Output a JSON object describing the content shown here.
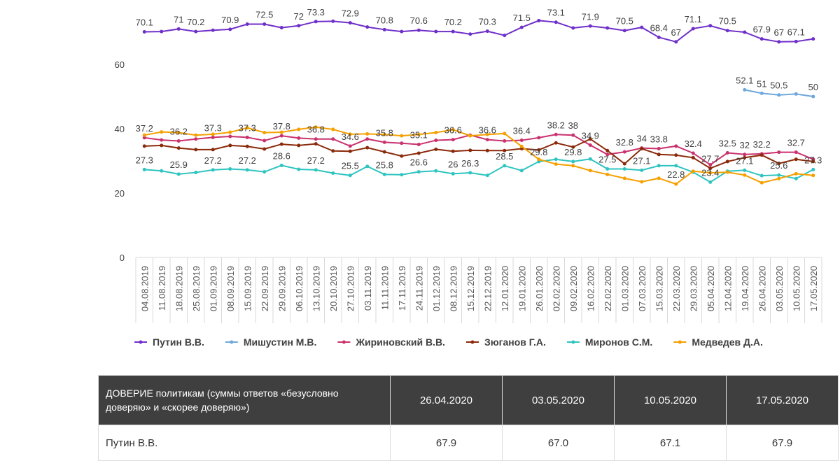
{
  "chart_data": {
    "type": "line",
    "categories": [
      "04.08.2019",
      "11.08.2019",
      "18.08.2019",
      "25.08.2019",
      "01.09.2019",
      "08.09.2019",
      "15.09.2019",
      "22.09.2019",
      "29.09.2019",
      "06.10.2019",
      "13.10.2019",
      "20.10.2019",
      "27.10.2019",
      "03.11.2019",
      "11.11.2019",
      "17.11.2019",
      "24.11.2019",
      "01.12.2019",
      "08.12.2019",
      "15.12.2019",
      "22.12.2019",
      "12.01.2020",
      "19.01.2020",
      "26.01.2020",
      "02.02.2020",
      "09.02.2020",
      "16.02.2020",
      "22.02.2020",
      "01.03.2020",
      "07.03.2020",
      "15.03.2020",
      "22.03.2020",
      "29.03.2020",
      "05.04.2020",
      "12.04.2020",
      "19.04.2020",
      "26.04.2020",
      "03.05.2020",
      "10.05.2020",
      "17.05.2020"
    ],
    "ylim": [
      0,
      80
    ],
    "yticks": [
      0,
      20,
      40,
      60
    ],
    "grid": false,
    "legend": "bottom",
    "series": [
      {
        "name": "Путин В.В.",
        "color": "#6f2fc9",
        "values": [
          70.1,
          70.2,
          71,
          70.2,
          70.6,
          70.9,
          72.5,
          72.5,
          71.4,
          72,
          73.3,
          73.4,
          72.9,
          71.6,
          70.8,
          70.2,
          70.6,
          70.2,
          70.2,
          69.4,
          70.3,
          69,
          71.5,
          73.6,
          73.1,
          71.3,
          71.9,
          71.3,
          70.5,
          71.5,
          68.4,
          67,
          71.1,
          72,
          70.5,
          70,
          67.9,
          67,
          67.1,
          67.9
        ],
        "value_labels": [
          "70.1",
          null,
          "71",
          "70.2",
          null,
          "70.9",
          null,
          "72.5",
          null,
          "72",
          "73.3",
          null,
          "72.9",
          null,
          "70.8",
          null,
          "70.6",
          null,
          "70.2",
          null,
          "70.3",
          null,
          "71.5",
          null,
          "73.1",
          null,
          "71.9",
          null,
          "70.5",
          null,
          "68.4",
          "67",
          "71.1",
          null,
          "70.5",
          null,
          "67.9",
          "67",
          "67.1",
          null
        ]
      },
      {
        "name": "Мишустин М.В.",
        "color": "#6fa8dc",
        "values": [
          null,
          null,
          null,
          null,
          null,
          null,
          null,
          null,
          null,
          null,
          null,
          null,
          null,
          null,
          null,
          null,
          null,
          null,
          null,
          null,
          null,
          null,
          null,
          null,
          null,
          null,
          null,
          null,
          null,
          null,
          null,
          null,
          null,
          null,
          null,
          52.1,
          51,
          50.5,
          50.8,
          50
        ],
        "value_labels": [
          null,
          null,
          null,
          null,
          null,
          null,
          null,
          null,
          null,
          null,
          null,
          null,
          null,
          null,
          null,
          null,
          null,
          null,
          null,
          null,
          null,
          null,
          null,
          null,
          null,
          null,
          null,
          null,
          null,
          null,
          null,
          null,
          null,
          null,
          null,
          "52.1",
          "51",
          "50.5",
          null,
          "50"
        ]
      },
      {
        "name": "Жириновский В.В.",
        "color": "#c9326e",
        "values": [
          37.2,
          36.5,
          36.2,
          36.8,
          37.3,
          37.6,
          37.3,
          36.3,
          37.8,
          37.1,
          36.8,
          36.8,
          34.6,
          36.8,
          35.8,
          35.5,
          35.1,
          36.4,
          36.6,
          38,
          36.6,
          36.2,
          36.4,
          37.2,
          38.2,
          38,
          34.9,
          32,
          32.8,
          34,
          33.8,
          34.6,
          32.4,
          28.8,
          32.5,
          32,
          32.2,
          32.7,
          32.7,
          30.5
        ],
        "value_labels": [
          "37.2",
          null,
          "36.2",
          null,
          "37.3",
          null,
          "37.3",
          null,
          "37.8",
          null,
          "36.8",
          null,
          "34.6",
          null,
          "35.8",
          null,
          "35.1",
          null,
          "36.6",
          null,
          "36.6",
          null,
          "36.4",
          null,
          "38.2",
          "38",
          "34.9",
          null,
          "32.8",
          "34",
          "33.8",
          null,
          "32.4",
          null,
          "32.5",
          "32",
          "32.2",
          null,
          "32.7",
          null
        ]
      },
      {
        "name": "Зюганов Г.А.",
        "color": "#8b2a0a",
        "values": [
          34.6,
          34.8,
          34,
          33.5,
          33.5,
          34.8,
          34.5,
          33.7,
          35.2,
          34.8,
          35.3,
          33.1,
          33,
          34.1,
          32.8,
          31.5,
          32.4,
          33.6,
          33,
          33.3,
          33.2,
          33.2,
          33.8,
          33.4,
          35.6,
          34.3,
          36.8,
          33.2,
          29.1,
          33.8,
          32,
          31.8,
          31,
          27.7,
          29.8,
          31,
          31.8,
          29.2,
          30.5,
          29.8
        ],
        "value_labels": [
          null,
          null,
          null,
          null,
          null,
          null,
          null,
          null,
          null,
          null,
          null,
          null,
          null,
          null,
          null,
          null,
          null,
          null,
          null,
          null,
          null,
          null,
          null,
          null,
          null,
          null,
          null,
          null,
          null,
          null,
          null,
          null,
          null,
          "27.7",
          null,
          null,
          null,
          null,
          null,
          null
        ]
      },
      {
        "name": "Миронов С.М.",
        "color": "#2ec4c0",
        "values": [
          27.3,
          26.9,
          25.9,
          26.4,
          27.2,
          27.5,
          27.2,
          26.6,
          28.6,
          27.4,
          27.2,
          26.2,
          25.5,
          28.3,
          25.8,
          25.7,
          26.6,
          26.9,
          26,
          26.3,
          25.5,
          28.5,
          27,
          29.8,
          30.5,
          29.8,
          30.6,
          27.5,
          27.5,
          27.1,
          28.5,
          28.5,
          26.5,
          23.4,
          26.8,
          27.1,
          25.4,
          25.6,
          24.5,
          27.3
        ],
        "value_labels": [
          "27.3",
          null,
          "25.9",
          null,
          "27.2",
          null,
          "27.2",
          null,
          "28.6",
          null,
          "27.2",
          null,
          "25.5",
          null,
          "25.8",
          null,
          "26.6",
          null,
          "26",
          "26.3",
          null,
          "28.5",
          null,
          "29.8",
          null,
          "29.8",
          null,
          "27.5",
          null,
          "27.1",
          null,
          null,
          null,
          "23.4",
          null,
          "27.1",
          null,
          "25.6",
          null,
          "27.3"
        ]
      },
      {
        "name": "Медведев Д.А.",
        "color": "#f5a000",
        "values": [
          38,
          39,
          38.8,
          38,
          38.3,
          38.9,
          40.3,
          38.8,
          38.9,
          39.8,
          40.5,
          39.8,
          38.3,
          38.4,
          38.2,
          37.8,
          38.2,
          38.8,
          39.7,
          37.8,
          38.2,
          38.5,
          34.5,
          30.5,
          29,
          28.5,
          27,
          25.8,
          24.6,
          23.5,
          24.6,
          22.8,
          26.8,
          26.3,
          26.5,
          25.6,
          23.2,
          24.5,
          26,
          25.5
        ],
        "value_labels": [
          null,
          null,
          null,
          null,
          null,
          null,
          null,
          null,
          null,
          null,
          null,
          null,
          null,
          null,
          null,
          null,
          null,
          null,
          null,
          null,
          null,
          null,
          null,
          null,
          null,
          null,
          null,
          null,
          null,
          null,
          null,
          "22.8",
          null,
          null,
          null,
          null,
          null,
          null,
          null,
          null
        ]
      }
    ]
  },
  "table": {
    "header": [
      "ДОВЕРИЕ политикам (суммы ответов «безусловно доверяю» и «скорее доверяю»)",
      "26.04.2020",
      "03.05.2020",
      "10.05.2020",
      "17.05.2020"
    ],
    "rows": [
      [
        "Путин В.В.",
        "67.9",
        "67.0",
        "67.1",
        "67.9"
      ]
    ]
  }
}
